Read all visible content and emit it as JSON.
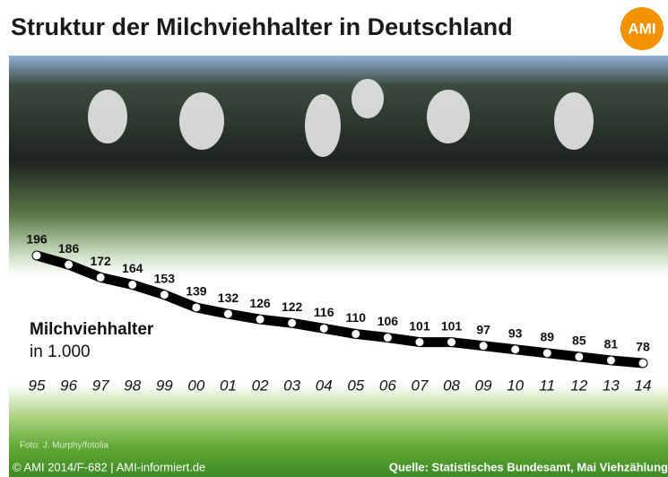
{
  "title": "Struktur der Milchviehhalter in Deutschland",
  "logo": "AMI",
  "photo_credit": "Foto: J. Murphy/fotolia",
  "footer_left": "© AMI 2014/F-682 | AMI-informiert.de",
  "footer_right": "Quelle: Statistisches Bundesamt, Mai Viehzählung",
  "chart_data": {
    "type": "line",
    "series_label": "Milchviehhalter",
    "unit_label": "in 1.000",
    "color": "#000000",
    "categories": [
      "95",
      "96",
      "97",
      "98",
      "99",
      "00",
      "01",
      "02",
      "03",
      "04",
      "05",
      "06",
      "07",
      "08",
      "09",
      "10",
      "11",
      "12",
      "13",
      "14"
    ],
    "values": [
      196,
      186,
      172,
      164,
      153,
      139,
      132,
      126,
      122,
      116,
      110,
      106,
      101,
      101,
      97,
      93,
      89,
      85,
      81,
      78
    ]
  }
}
